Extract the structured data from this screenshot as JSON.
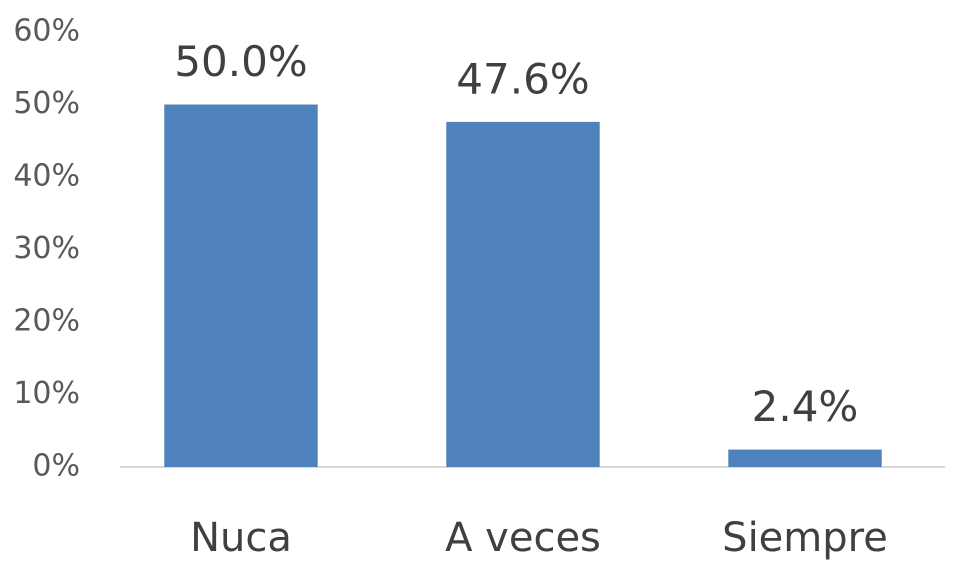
{
  "chart_data": {
    "type": "bar",
    "categories": [
      "Nuca",
      "A veces",
      "Siempre"
    ],
    "values": [
      50.0,
      47.6,
      2.4
    ],
    "value_labels": [
      "50.0%",
      "47.6%",
      "2.4%"
    ],
    "color": "#4f81bd",
    "ylim": [
      0,
      60
    ],
    "yticks": [
      {
        "value": 0,
        "label": "0%"
      },
      {
        "value": 10,
        "label": "10%"
      },
      {
        "value": 20,
        "label": "20%"
      },
      {
        "value": 30,
        "label": "30%"
      },
      {
        "value": 40,
        "label": "40%"
      },
      {
        "value": 50,
        "label": "50%"
      },
      {
        "value": 60,
        "label": "60%"
      }
    ],
    "grid": false
  }
}
